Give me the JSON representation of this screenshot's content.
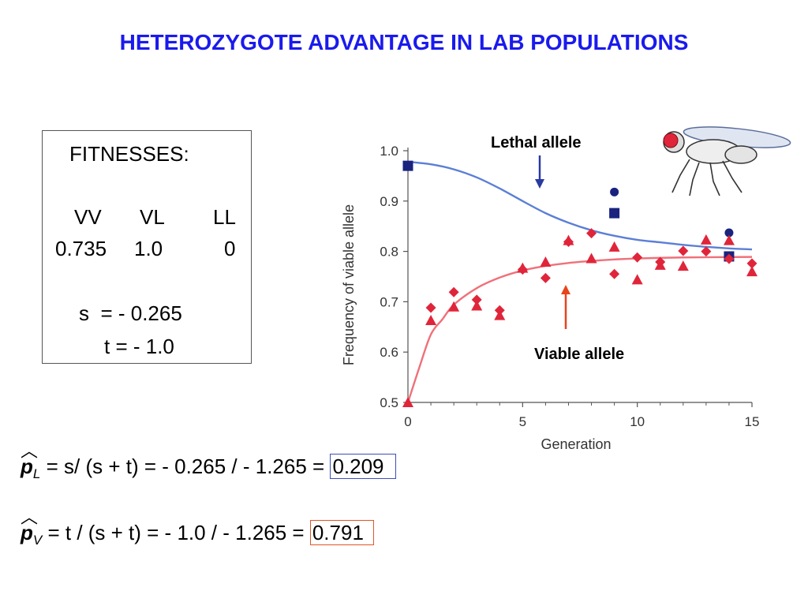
{
  "title": "HETEROZYGOTE ADVANTAGE IN LAB POPULATIONS",
  "fitness_box": {
    "heading": "FITNESSES:",
    "genotypes": [
      "VV",
      "VL",
      "LL"
    ],
    "values": [
      "0.735",
      "1.0",
      "0"
    ],
    "s_line": "s  = - 0.265",
    "t_line": "t = - 1.0"
  },
  "formulas": {
    "pl": {
      "symbol": "p",
      "subscript": "L",
      "expression": " = s/ (s + t) = - 0.265 / - 1.265 = ",
      "result": "0.209"
    },
    "pv": {
      "symbol": "p",
      "subscript": "V",
      "expression": " = t / (s + t) = - 1.0 / - 1.265 = ",
      "result": "0.791"
    }
  },
  "chart_data": {
    "type": "scatter",
    "xlabel": "Generation",
    "ylabel": "Frequency of viable allele",
    "xlim": [
      0,
      15
    ],
    "ylim": [
      0.5,
      1.0
    ],
    "x_ticks": [
      0,
      5,
      10,
      15
    ],
    "y_ticks": [
      "0.5",
      "0.6",
      "0.7",
      "0.8",
      "0.9",
      "1.0"
    ],
    "grid": false,
    "annotations": {
      "lethal": "Lethal allele",
      "viable": "Viable allele"
    },
    "colors": {
      "blue_curve": "#5b7fd6",
      "red_curve": "#f0707a",
      "blue_points": "#1a237e",
      "red_points": "#e0253a",
      "lethal_arrow": "#2a3aa0",
      "viable_arrow": "#e8441c"
    },
    "series": [
      {
        "marker": "square",
        "color": "blue",
        "points": [
          [
            0,
            0.97
          ],
          [
            9,
            0.876
          ],
          [
            14,
            0.79
          ]
        ]
      },
      {
        "marker": "circle",
        "color": "blue",
        "points": [
          [
            9,
            0.918
          ],
          [
            14,
            0.837
          ]
        ]
      },
      {
        "marker": "diamond",
        "color": "red",
        "points": [
          [
            1,
            0.688
          ],
          [
            2,
            0.719
          ],
          [
            3,
            0.704
          ],
          [
            4,
            0.683
          ],
          [
            5,
            0.764
          ],
          [
            6,
            0.747
          ],
          [
            7,
            0.819
          ],
          [
            8,
            0.836
          ],
          [
            9,
            0.755
          ],
          [
            10,
            0.788
          ],
          [
            11,
            0.779
          ],
          [
            12,
            0.801
          ],
          [
            13,
            0.8
          ],
          [
            14,
            0.785
          ],
          [
            15,
            0.776
          ]
        ]
      },
      {
        "marker": "triangle",
        "color": "red",
        "points": [
          [
            0,
            0.5
          ],
          [
            1,
            0.663
          ],
          [
            2,
            0.69
          ],
          [
            3,
            0.692
          ],
          [
            4,
            0.673
          ],
          [
            5,
            0.767
          ],
          [
            6,
            0.779
          ],
          [
            7,
            0.822
          ],
          [
            8,
            0.786
          ],
          [
            9,
            0.809
          ],
          [
            10,
            0.744
          ],
          [
            11,
            0.773
          ],
          [
            12,
            0.771
          ],
          [
            13,
            0.823
          ],
          [
            14,
            0.822
          ],
          [
            15,
            0.76
          ]
        ]
      }
    ],
    "curves": [
      {
        "color": "blue",
        "points": [
          [
            0,
            0.978
          ],
          [
            1,
            0.973
          ],
          [
            2,
            0.963
          ],
          [
            3,
            0.947
          ],
          [
            4,
            0.925
          ],
          [
            5,
            0.9
          ],
          [
            6,
            0.876
          ],
          [
            7,
            0.857
          ],
          [
            8,
            0.842
          ],
          [
            9,
            0.831
          ],
          [
            10,
            0.823
          ],
          [
            11,
            0.818
          ],
          [
            12,
            0.813
          ],
          [
            13,
            0.809
          ],
          [
            14,
            0.806
          ],
          [
            15,
            0.804
          ]
        ]
      },
      {
        "color": "red",
        "points": [
          [
            0,
            0.5
          ],
          [
            0.5,
            0.57
          ],
          [
            1,
            0.635
          ],
          [
            1.5,
            0.665
          ],
          [
            2,
            0.694
          ],
          [
            3,
            0.727
          ],
          [
            4,
            0.748
          ],
          [
            5,
            0.762
          ],
          [
            6,
            0.771
          ],
          [
            7,
            0.777
          ],
          [
            8,
            0.781
          ],
          [
            9,
            0.784
          ],
          [
            10,
            0.786
          ],
          [
            12,
            0.788
          ],
          [
            15,
            0.789
          ]
        ]
      }
    ]
  }
}
